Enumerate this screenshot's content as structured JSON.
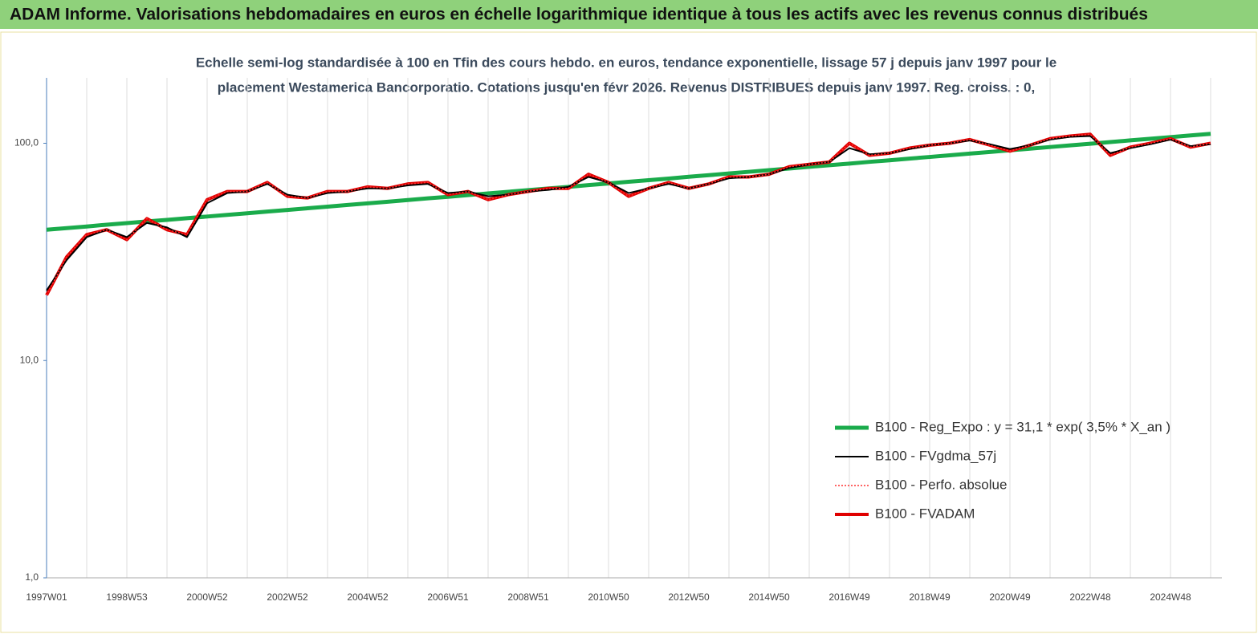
{
  "chart_data": {
    "type": "line",
    "title": "ADAM Informe. Valorisations hebdomadaires en euros en échelle logarithmique identique à tous les actifs avec les revenus connus distribués",
    "subtitle": [
      "Echelle semi-log standardisée à 100 en Tfin des cours hebdo. en euros, tendance exponentielle, lissage 57 j depuis janv 1997 pour le",
      "placement Westamerica Bancorporatio. Cotations jusqu'en févr 2026. Revenus DISTRIBUES depuis janv 1997. Reg. croiss. : 0,"
    ],
    "categories": [
      "1997W01",
      null,
      null,
      null,
      "1998W53",
      null,
      null,
      null,
      "2000W52",
      null,
      null,
      null,
      "2002W52",
      null,
      null,
      null,
      "2004W52",
      null,
      null,
      null,
      "2006W51",
      null,
      null,
      null,
      "2008W51",
      null,
      null,
      null,
      "2010W50",
      null,
      null,
      null,
      "2012W50",
      null,
      null,
      null,
      "2014W50",
      null,
      null,
      null,
      "2016W49",
      null,
      null,
      null,
      "2018W49",
      null,
      null,
      null,
      "2020W49",
      null,
      null,
      null,
      "2022W48",
      null,
      null,
      null,
      "2024W48",
      null,
      null
    ],
    "log_scale": true,
    "ylim": [
      1,
      200
    ],
    "yticks": [
      {
        "value": 1,
        "label": "1,0"
      },
      {
        "value": 10,
        "label": "10,0"
      },
      {
        "value": 100,
        "label": "100,0"
      }
    ],
    "grid": true,
    "legend": "lower right",
    "series": [
      {
        "name": "B100 - Reg_Expo : y = 31,1 *  exp( 3,5% *  X_an )",
        "color": "#1aab4b",
        "width": 5,
        "values": [
          40.0,
          40.7,
          41.4,
          42.2,
          42.9,
          43.7,
          44.4,
          45.2,
          46.0,
          46.8,
          47.6,
          48.5,
          49.3,
          50.2,
          51.1,
          52.0,
          52.9,
          53.8,
          54.8,
          55.8,
          56.7,
          57.7,
          58.8,
          59.8,
          60.9,
          61.9,
          63.0,
          64.2,
          65.3,
          66.5,
          67.6,
          68.8,
          70.1,
          71.3,
          72.6,
          73.9,
          75.2,
          76.5,
          77.9,
          79.2,
          80.6,
          82.1,
          83.5,
          85.0,
          86.5,
          88.0,
          89.6,
          91.2,
          92.8,
          94.4,
          96.1,
          97.8,
          99.5,
          101.3,
          103.1,
          104.9,
          106.7,
          108.6,
          110.5
        ]
      },
      {
        "name": "B100 - FVgdma_57j",
        "color": "#000000",
        "width": 2,
        "values": [
          21,
          29,
          37,
          40,
          37,
          43,
          41,
          37,
          53,
          59,
          60,
          65,
          58,
          56,
          59,
          60,
          62,
          62,
          64,
          65,
          59,
          60,
          57,
          58,
          60,
          61,
          63,
          70,
          66,
          59,
          62,
          65,
          62,
          65,
          69,
          70,
          72,
          77,
          80,
          82,
          95,
          89,
          90,
          94,
          98,
          100,
          103,
          99,
          94,
          98,
          104,
          107,
          108,
          90,
          95,
          99,
          104,
          97,
          99
        ]
      },
      {
        "name": "B100 - Perfo. absolue",
        "color": "#ff3030",
        "width": 1.5,
        "dash": "2 2",
        "values": [
          20,
          30,
          38,
          40,
          36,
          45,
          40,
          38,
          55,
          60,
          60,
          66,
          57,
          56,
          60,
          60,
          63,
          62,
          65,
          66,
          58,
          60,
          55,
          58,
          60,
          62,
          62,
          72,
          66,
          57,
          62,
          66,
          62,
          65,
          70,
          70,
          72,
          78,
          80,
          82,
          100,
          88,
          90,
          95,
          98,
          100,
          104,
          98,
          92,
          98,
          105,
          108,
          110,
          88,
          96,
          100,
          105,
          96,
          100
        ]
      },
      {
        "name": "B100 - FVADAM",
        "color": "#e00000",
        "width": 4,
        "values": [
          20,
          30,
          38,
          40,
          36,
          45,
          40,
          38,
          55,
          60,
          60,
          66,
          57,
          56,
          60,
          60,
          63,
          62,
          65,
          66,
          58,
          60,
          55,
          58,
          60,
          62,
          62,
          72,
          66,
          57,
          62,
          66,
          62,
          65,
          70,
          70,
          72,
          78,
          80,
          82,
          100,
          88,
          90,
          95,
          98,
          100,
          104,
          98,
          92,
          98,
          105,
          108,
          110,
          88,
          96,
          100,
          105,
          96,
          100
        ]
      }
    ]
  }
}
